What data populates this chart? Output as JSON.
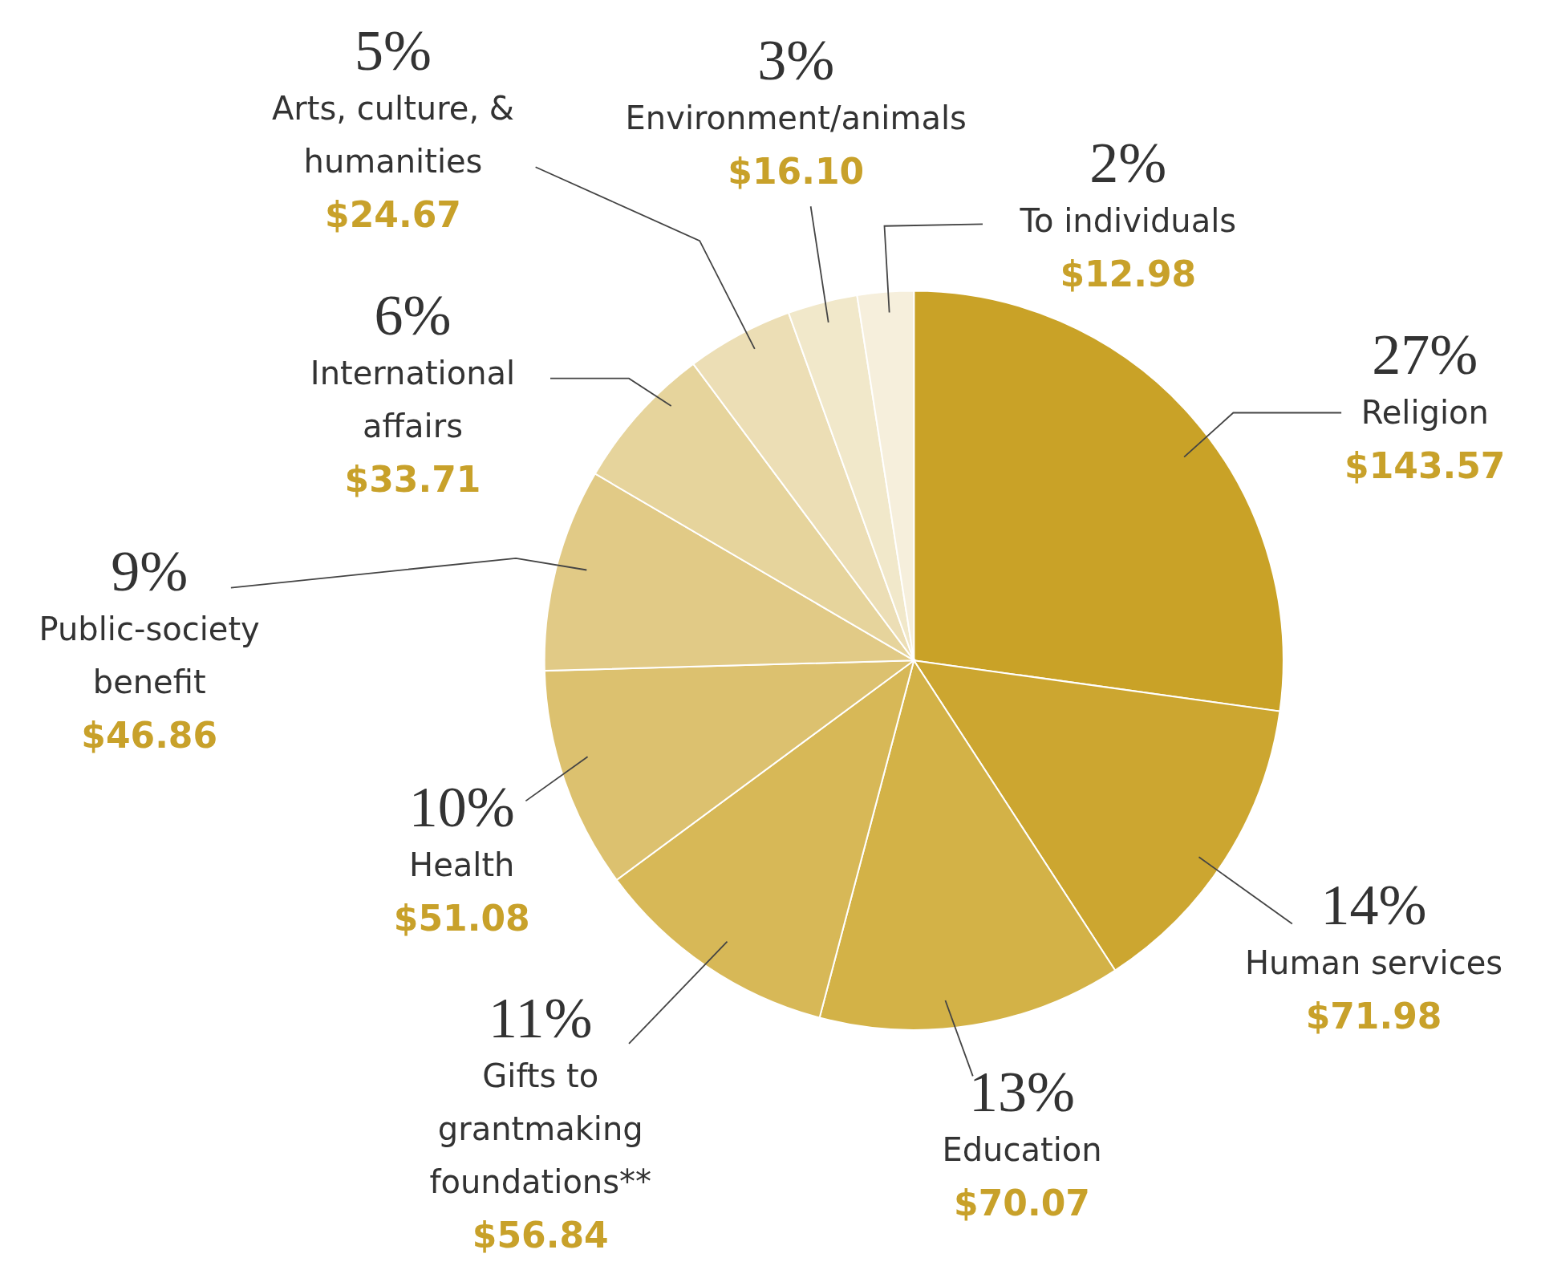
{
  "chart_data": {
    "type": "pie",
    "categories": [
      "Religion",
      "Human services",
      "Education",
      "Gifts to grantmaking foundations**",
      "Health",
      "Public-society benefit",
      "International affairs",
      "Arts, culture, & humanities",
      "Environment/animals",
      "To individuals"
    ],
    "values": [
      143.57,
      71.98,
      70.07,
      56.84,
      51.08,
      46.86,
      33.71,
      24.67,
      16.1,
      12.98
    ],
    "value_labels": [
      "$143.57",
      "$71.98",
      "$70.07",
      "$56.84",
      "$51.08",
      "$46.86",
      "$33.71",
      "$24.67",
      "$16.10",
      "$12.98"
    ],
    "colors": [
      "#c9a227",
      "#cca630",
      "#d3b247",
      "#d7b857",
      "#dcc16f",
      "#e1ca86",
      "#e6d49c",
      "#ecdeb5",
      "#f1e8ca",
      "#f6efdc"
    ],
    "annotations": [
      "27%",
      "14%",
      "13%",
      "11%",
      "10%",
      "9%",
      "6%",
      "5%",
      "3%",
      "2%"
    ]
  }
}
